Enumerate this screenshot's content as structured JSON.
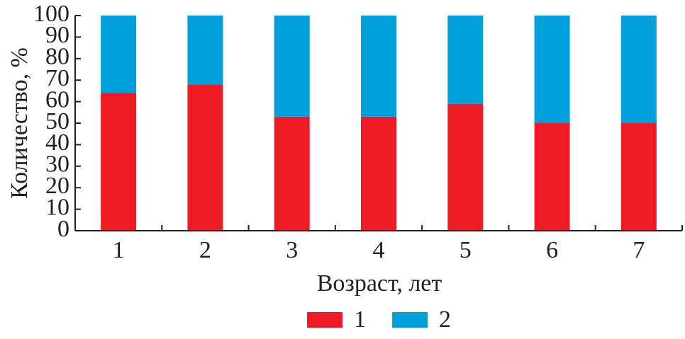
{
  "chart_data": {
    "type": "stacked_bar",
    "x_label": "Возраст, лет",
    "y_label": "Количество, %",
    "categories": [
      "1",
      "2",
      "3",
      "4",
      "5",
      "6",
      "7"
    ],
    "series": [
      {
        "name": "1",
        "color": "#ed1c24",
        "values": [
          64,
          68,
          53,
          53,
          59,
          50,
          50
        ]
      },
      {
        "name": "2",
        "color": "#00a0dc",
        "values": [
          36,
          32,
          47,
          47,
          41,
          50,
          50
        ]
      }
    ],
    "ylim": [
      0,
      100
    ],
    "yticks": [
      0,
      10,
      20,
      30,
      40,
      50,
      60,
      70,
      80,
      90,
      100
    ]
  }
}
